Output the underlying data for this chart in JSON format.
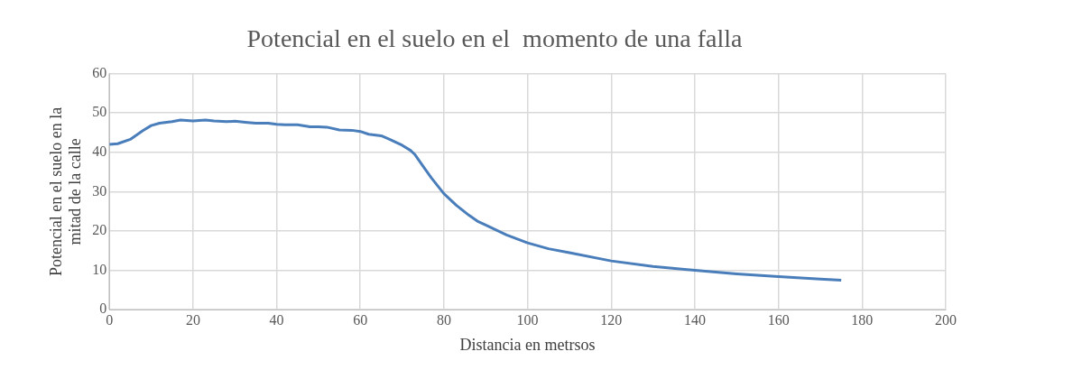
{
  "chart_data": {
    "type": "line",
    "title": "Potencial en el suelo en el  momento de una falla",
    "xlabel": "Distancia en metrsos",
    "ylabel": "Potencial en el suelo en la mitad de la calle",
    "x": [
      0,
      2,
      5,
      8,
      10,
      12,
      15,
      17,
      20,
      23,
      25,
      28,
      30,
      33,
      35,
      38,
      40,
      42,
      45,
      48,
      50,
      52,
      55,
      58,
      60,
      62,
      65,
      67,
      70,
      72,
      73,
      75,
      77,
      80,
      83,
      86,
      88,
      90,
      95,
      100,
      105,
      110,
      120,
      130,
      140,
      150,
      160,
      170,
      175
    ],
    "series": [
      {
        "color": "#4a7ebb",
        "values": [
          42,
          42.2,
          43.3,
          45.5,
          46.8,
          47.4,
          47.8,
          48.2,
          48,
          48.2,
          48,
          47.8,
          47.9,
          47.6,
          47.4,
          47.4,
          47.1,
          47,
          47,
          46.5,
          46.5,
          46.4,
          45.7,
          45.6,
          45.3,
          44.6,
          44.2,
          43.3,
          41.8,
          40.5,
          39.5,
          36.5,
          33.5,
          29.5,
          26.5,
          24,
          22.5,
          21.5,
          19,
          17,
          15.5,
          14.5,
          12.4,
          11,
          10,
          9.1,
          8.4,
          7.8,
          7.5
        ]
      }
    ],
    "xlim": [
      0,
      200
    ],
    "xticks": [
      0,
      20,
      40,
      60,
      80,
      100,
      120,
      140,
      160,
      180,
      200
    ],
    "ylim": [
      0,
      60
    ],
    "yticks": [
      0,
      10,
      20,
      30,
      40,
      50,
      60
    ],
    "grid": true,
    "legend": false,
    "marker": "none",
    "line_style": "solid"
  }
}
